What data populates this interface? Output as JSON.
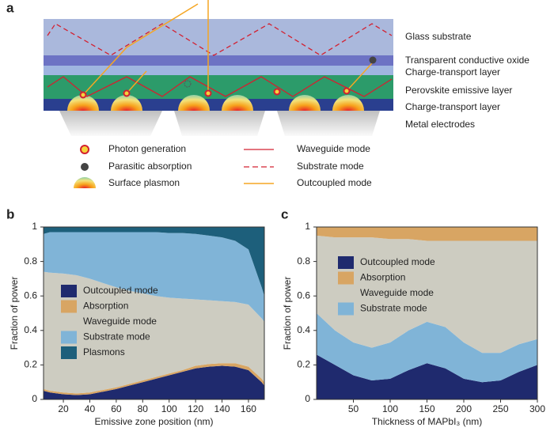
{
  "panels": [
    "a",
    "b",
    "c"
  ],
  "diagram": {
    "layers": [
      "Glass substrate",
      "Transparent conductive oxide",
      "Charge-transport layer",
      "Perovskite emissive layer",
      "Charge-transport layer",
      "Metal electrodes"
    ],
    "legend": {
      "markers": [
        "Photon generation",
        "Parasitic absorption",
        "Surface plasmon"
      ],
      "modes": [
        "Waveguide mode",
        "Substrate mode",
        "Outcoupled mode"
      ]
    }
  },
  "chart_data": [
    {
      "type": "stacked-area",
      "xlabel": "Emissive zone position (nm)",
      "ylabel": "Fraction of power",
      "x": [
        5,
        10,
        20,
        30,
        40,
        50,
        60,
        70,
        80,
        90,
        100,
        110,
        120,
        130,
        140,
        150,
        160,
        170,
        172
      ],
      "xlim": [
        5,
        172
      ],
      "xticks": [
        20,
        40,
        60,
        80,
        100,
        120,
        140,
        160
      ],
      "ylim": [
        0,
        1
      ],
      "yticks": [
        0,
        0.2,
        0.4,
        0.6,
        0.8,
        1
      ],
      "stack_order": [
        0,
        1,
        2,
        3,
        4
      ],
      "series": [
        {
          "name": "Outcoupled mode",
          "color": "#1f2a6e",
          "values": [
            0.05,
            0.04,
            0.03,
            0.025,
            0.03,
            0.045,
            0.06,
            0.08,
            0.1,
            0.12,
            0.14,
            0.16,
            0.18,
            0.19,
            0.195,
            0.19,
            0.17,
            0.1,
            0.08
          ]
        },
        {
          "name": "Absorption",
          "color": "#d8a563",
          "values": [
            0.01,
            0.01,
            0.01,
            0.01,
            0.01,
            0.01,
            0.01,
            0.01,
            0.01,
            0.01,
            0.01,
            0.01,
            0.015,
            0.015,
            0.015,
            0.02,
            0.02,
            0.02,
            0.02
          ]
        },
        {
          "name": "Waveguide mode",
          "color": "#cdccc1",
          "values": [
            0.68,
            0.685,
            0.69,
            0.685,
            0.66,
            0.62,
            0.58,
            0.54,
            0.505,
            0.47,
            0.44,
            0.415,
            0.385,
            0.37,
            0.36,
            0.355,
            0.36,
            0.35,
            0.35
          ]
        },
        {
          "name": "Substrate mode",
          "color": "#80b4d7",
          "values": [
            0.22,
            0.235,
            0.24,
            0.25,
            0.27,
            0.295,
            0.32,
            0.34,
            0.355,
            0.37,
            0.375,
            0.38,
            0.38,
            0.375,
            0.37,
            0.355,
            0.32,
            0.18,
            0.15
          ]
        },
        {
          "name": "Plasmons",
          "color": "#1d5f7b",
          "values": [
            0.04,
            0.03,
            0.03,
            0.03,
            0.03,
            0.03,
            0.03,
            0.03,
            0.03,
            0.03,
            0.035,
            0.035,
            0.04,
            0.05,
            0.06,
            0.08,
            0.13,
            0.35,
            0.4
          ]
        }
      ]
    },
    {
      "type": "stacked-area",
      "xlabel": "Thickness of MAPbI₃ (nm)",
      "ylabel": "Fraction of power",
      "x": [
        0,
        25,
        50,
        75,
        100,
        125,
        150,
        175,
        200,
        225,
        250,
        275,
        300
      ],
      "xlim": [
        0,
        300
      ],
      "xticks": [
        50,
        100,
        150,
        200,
        250,
        300
      ],
      "ylim": [
        0,
        1
      ],
      "yticks": [
        0,
        0.2,
        0.4,
        0.6,
        0.8,
        1
      ],
      "stack_order": [
        0,
        3,
        2,
        1
      ],
      "series": [
        {
          "name": "Outcoupled mode",
          "color": "#1f2a6e",
          "values": [
            0.26,
            0.2,
            0.14,
            0.11,
            0.12,
            0.17,
            0.21,
            0.18,
            0.12,
            0.1,
            0.11,
            0.16,
            0.2
          ]
        },
        {
          "name": "Absorption",
          "color": "#d8a563",
          "values": [
            0.05,
            0.06,
            0.06,
            0.06,
            0.07,
            0.07,
            0.08,
            0.08,
            0.08,
            0.08,
            0.08,
            0.08,
            0.08
          ]
        },
        {
          "name": "Waveguide mode",
          "color": "#cdccc1",
          "values": [
            0.45,
            0.54,
            0.61,
            0.64,
            0.6,
            0.53,
            0.47,
            0.5,
            0.59,
            0.65,
            0.65,
            0.6,
            0.57
          ]
        },
        {
          "name": "Substrate mode",
          "color": "#80b4d7",
          "values": [
            0.24,
            0.2,
            0.19,
            0.19,
            0.21,
            0.23,
            0.24,
            0.24,
            0.21,
            0.17,
            0.16,
            0.16,
            0.15
          ]
        }
      ]
    }
  ]
}
